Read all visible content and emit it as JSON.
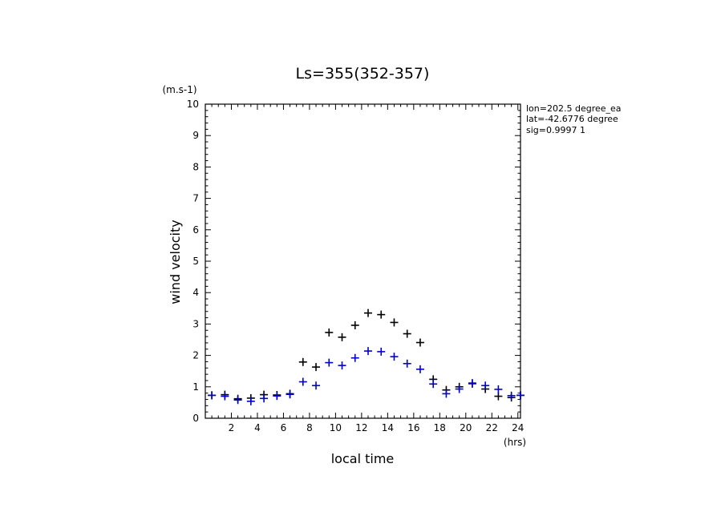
{
  "chart_data": {
    "type": "scatter",
    "title": "Ls=355(352-357)",
    "xlabel": "local time",
    "xunit": "(hrs)",
    "ylabel": "wind velocity",
    "yunit": "(m.s-1)",
    "xlim": [
      0,
      24.2
    ],
    "ylim": [
      0,
      10
    ],
    "x_ticks": [
      2,
      4,
      6,
      8,
      10,
      12,
      14,
      16,
      18,
      20,
      22,
      24
    ],
    "y_ticks": [
      0,
      1,
      2,
      3,
      4,
      5,
      6,
      7,
      8,
      9,
      10
    ],
    "grid": false,
    "info_lines": [
      "lon=202.5 degree_ea",
      "lat=-42.6776 degree",
      "sig=0.9997 1"
    ],
    "series": [
      {
        "color": "#000000",
        "x": [
          0.5,
          1.5,
          2.5,
          3.5,
          4.5,
          5.5,
          6.5,
          7.5,
          8.5,
          9.5,
          10.5,
          11.5,
          12.5,
          13.5,
          14.5,
          15.5,
          16.5,
          17.5,
          18.5,
          19.5,
          20.5,
          21.5,
          22.5,
          23.5,
          24.2
        ],
        "values": [
          0.73,
          0.75,
          0.62,
          0.64,
          0.75,
          0.74,
          0.78,
          1.79,
          1.63,
          2.73,
          2.58,
          2.96,
          3.35,
          3.3,
          3.05,
          2.69,
          2.41,
          1.24,
          0.9,
          1.0,
          1.1,
          0.93,
          0.7,
          0.66,
          0.73
        ]
      },
      {
        "color": "#0000cc",
        "x": [
          0.5,
          1.5,
          2.5,
          3.5,
          4.5,
          5.5,
          6.5,
          7.5,
          8.5,
          9.5,
          10.5,
          11.5,
          12.5,
          13.5,
          14.5,
          15.5,
          16.5,
          17.5,
          18.5,
          19.5,
          20.5,
          21.5,
          22.5,
          23.5,
          24.2
        ],
        "values": [
          0.73,
          0.7,
          0.58,
          0.54,
          0.63,
          0.71,
          0.76,
          1.16,
          1.04,
          1.77,
          1.68,
          1.92,
          2.14,
          2.12,
          1.96,
          1.74,
          1.56,
          1.09,
          0.78,
          0.93,
          1.12,
          1.04,
          0.92,
          0.72,
          0.73
        ]
      }
    ]
  }
}
